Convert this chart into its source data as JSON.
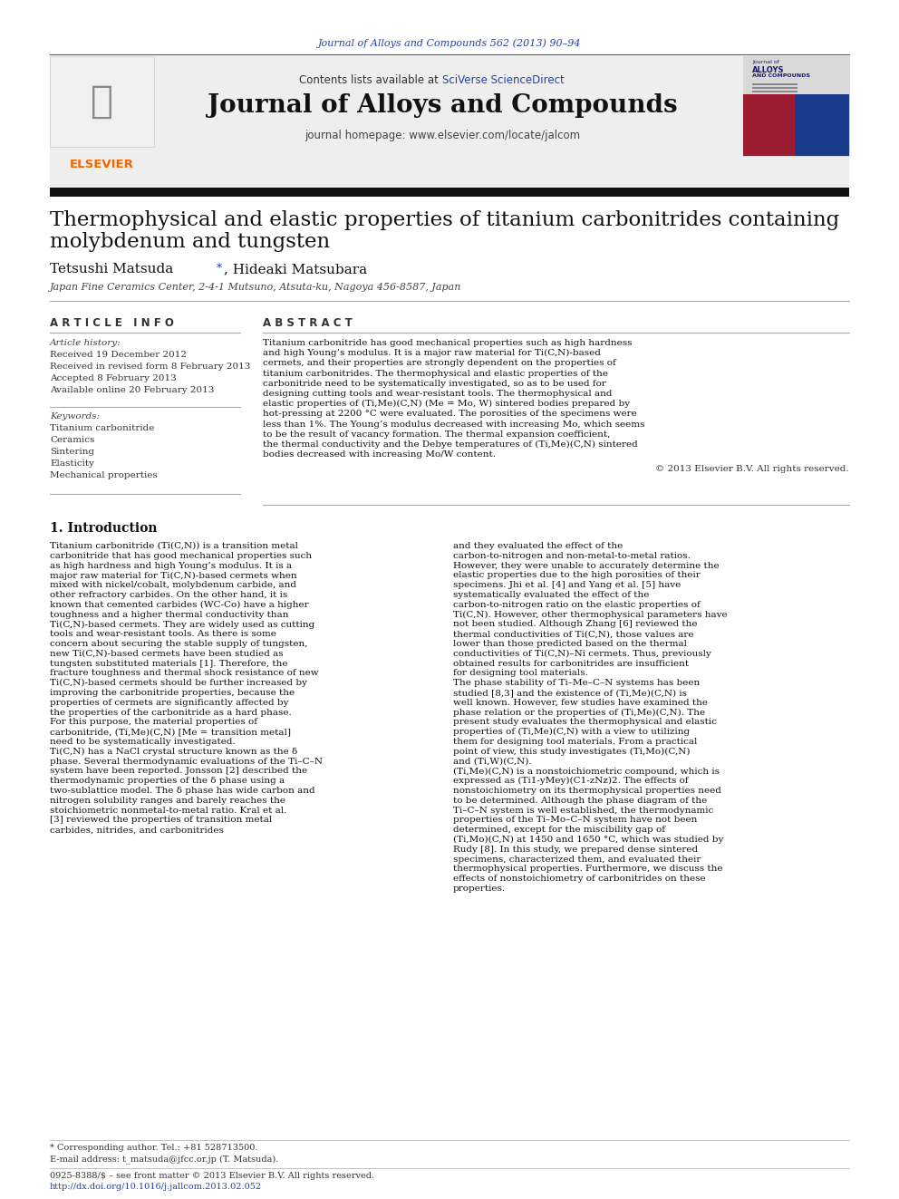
{
  "journal_ref": "Journal of Alloys and Compounds 562 (2013) 90–94",
  "header_text1": "Contents lists available at ",
  "header_sciverse": "SciVerse ScienceDirect",
  "journal_title": "Journal of Alloys and Compounds",
  "journal_homepage": "journal homepage: www.elsevier.com/locate/jalcom",
  "paper_title_line1": "Thermophysical and elastic properties of titanium carbonitrides containing",
  "paper_title_line2": "molybdenum and tungsten",
  "affiliation": "Japan Fine Ceramics Center, 2-4-1 Mutsuno, Atsuta-ku, Nagoya 456-8587, Japan",
  "article_info_header": "A R T I C L E   I N F O",
  "article_history_label": "Article history:",
  "article_history": [
    "Received 19 December 2012",
    "Received in revised form 8 February 2013",
    "Accepted 8 February 2013",
    "Available online 20 February 2013"
  ],
  "keywords_label": "Keywords:",
  "keywords": [
    "Titanium carbonitride",
    "Ceramics",
    "Sintering",
    "Elasticity",
    "Mechanical properties"
  ],
  "abstract_header": "A B S T R A C T",
  "abstract_text": "Titanium carbonitride has good mechanical properties such as high hardness and high Young’s modulus. It is a major raw material for Ti(C,N)-based cermets, and their properties are strongly dependent on the properties of titanium carbonitrides. The thermophysical and elastic properties of the carbonitride need to be systematically investigated, so as to be used for designing cutting tools and wear-resistant tools. The thermophysical and elastic properties of (Ti,Me)(C,N) (Me = Mo, W) sintered bodies prepared by hot-pressing at 2200 °C were evaluated. The porosities of the specimens were less than 1%. The Young’s modulus decreased with increasing Mo, which seems to be the result of vacancy formation. The thermal expansion coefficient, the thermal conductivity and the Debye temperatures of (Ti,Me)(C,N) sintered bodies decreased with increasing Mo/W content.",
  "copyright": "© 2013 Elsevier B.V. All rights reserved.",
  "section1_title": "1. Introduction",
  "section1_col1": "Titanium carbonitride (Ti(C,N)) is a transition metal carbonitride that has good mechanical properties such as high hardness and high Young’s modulus. It is a major raw material for Ti(C,N)-based cermets when mixed with nickel/cobalt, molybdenum carbide, and other refractory carbides. On the other hand, it is known that cemented carbides (WC-Co) have a higher toughness and a higher thermal conductivity than Ti(C,N)-based cermets. They are widely used as cutting tools and wear-resistant tools. As there is some concern about securing the stable supply of tungsten, new Ti(C,N)-based cermets have been studied as tungsten substituted materials [1]. Therefore, the fracture toughness and thermal shock resistance of new Ti(C,N)-based cermets should be further increased by improving the carbonitride properties, because the properties of cermets are significantly affected by the properties of the carbonitride as a hard phase. For this purpose, the material properties of carbonitride, (Ti,Me)(C,N) [Me = transition metal] need to be systematically investigated.\n    Ti(C,N) has a NaCl crystal structure known as the δ phase. Several thermodynamic evaluations of the Ti–C–N system have been reported. Jonsson [2] described the thermodynamic properties of the δ phase using a two-sublattice model. The δ phase has wide carbon and nitrogen solubility ranges and barely reaches the stoichiometric nonmetal-to-metal ratio. Kral et al. [3] reviewed the properties of transition metal carbides, nitrides, and carbonitrides",
  "section1_col2": "and they evaluated the effect of the carbon-to-nitrogen and non-metal-to-metal ratios. However, they were unable to accurately determine the elastic properties due to the high porosities of their specimens. Jhi et al. [4] and Yang et al. [5] have systematically evaluated the effect of the carbon-to-nitrogen ratio on the elastic properties of Ti(C,N). However, other thermophysical parameters have not been studied. Although Zhang [6] reviewed the thermal conductivities of Ti(C,N), those values are lower than those predicted based on the thermal conductivities of Ti(C,N)–Ni cermets. Thus, previously obtained results for carbonitrides are insufficient for designing tool materials.\n    The phase stability of Ti–Me–C–N systems has been studied [8,3] and the existence of (Ti,Me)(C,N) is well known. However, few studies have examined the phase relation or the properties of (Ti,Me)(C,N). The present study evaluates the thermophysical and elastic properties of (Ti,Me)(C,N) with a view to utilizing them for designing tool materials. From a practical point of view, this study investigates (Ti,Mo)(C,N) and (Ti,W)(C,N).\n    (Ti,Me)(C,N) is a nonstoichiometric compound, which is expressed as (Ti1-yMey)(C1-zNz)2. The effects of nonstoichiometry on its thermophysical properties need to be determined. Although the phase diagram of the Ti–C–N system is well established, the thermodynamic properties of the Ti–Mo–C–N system have not been determined, except for the miscibility gap of (Ti,Mo)(C,N) at 1450 and 1650 °C, which was studied by Rudy [8]. In this study, we prepared dense sintered specimens, characterized them, and evaluated their thermophysical properties. Furthermore, we discuss the effects of nonstoichiometry of carbonitrides on these properties.",
  "footnote1": "* Corresponding author. Tel.: +81 528713500.",
  "footnote2": "E-mail address: t_matsuda@jfcc.or.jp (T. Matsuda).",
  "footnote3": "0925-8388/$ – see front matter © 2013 Elsevier B.V. All rights reserved.",
  "footnote4": "http://dx.doi.org/10.1016/j.jallcom.2013.02.052",
  "bg_color": "#ffffff",
  "header_bg": "#eeeeee",
  "black_bar_color": "#111111",
  "text_color": "#000000",
  "link_color": "#2244aa",
  "orange_color": "#ee6600"
}
